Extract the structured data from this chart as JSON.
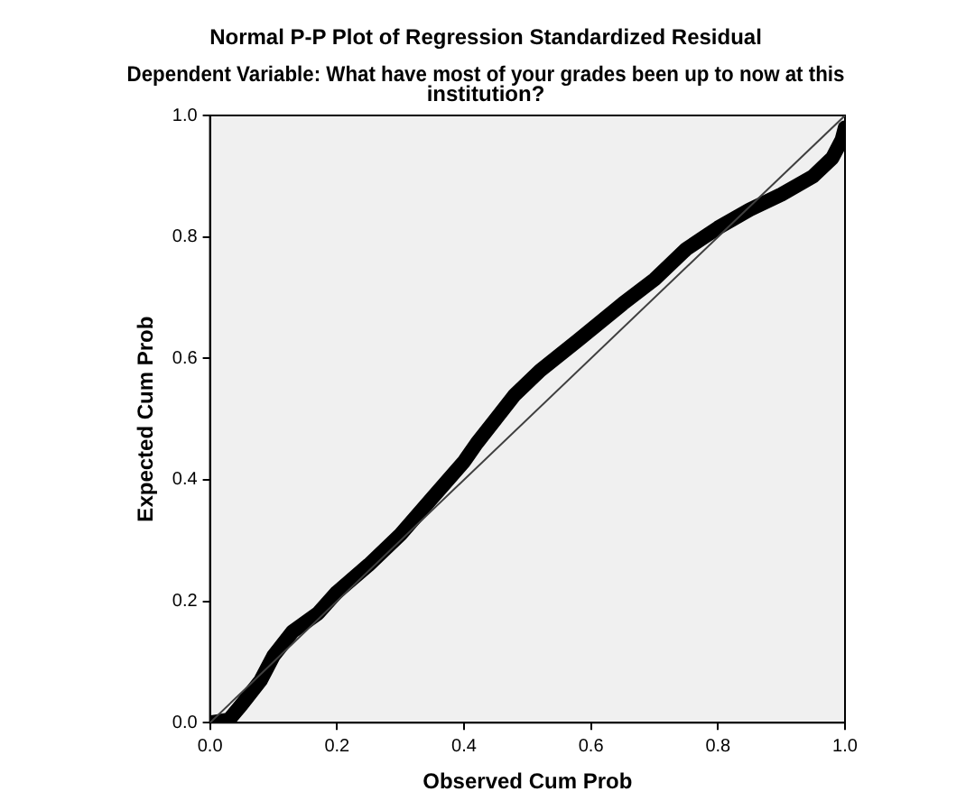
{
  "chart_data": {
    "type": "line",
    "title": "Normal P-P Plot of Regression Standardized Residual",
    "subtitle": "Dependent Variable: What have most of your grades been up to now at this institution?",
    "xlabel": "Observed Cum Prob",
    "ylabel": "Expected Cum Prob",
    "x": [
      0.0,
      0.03,
      0.05,
      0.08,
      0.1,
      0.13,
      0.17,
      0.2,
      0.25,
      0.3,
      0.35,
      0.4,
      0.42,
      0.45,
      0.48,
      0.52,
      0.58,
      0.65,
      0.7,
      0.75,
      0.8,
      0.85,
      0.9,
      0.95,
      0.98,
      0.995,
      1.0
    ],
    "series": [
      {
        "color": "#000000",
        "values": [
          0.0,
          0.005,
          0.03,
          0.07,
          0.11,
          0.15,
          0.18,
          0.215,
          0.26,
          0.31,
          0.37,
          0.43,
          0.46,
          0.5,
          0.54,
          0.58,
          0.63,
          0.69,
          0.73,
          0.78,
          0.815,
          0.845,
          0.87,
          0.9,
          0.93,
          0.96,
          0.98
        ]
      },
      {
        "type": "line",
        "color": "#404040",
        "x": [
          0,
          1
        ],
        "values": [
          0,
          1
        ]
      }
    ],
    "xlim": [
      0,
      1
    ],
    "ylim": [
      0,
      1
    ],
    "xticks": [
      {
        "value": 0,
        "label": "0.0"
      },
      {
        "value": 0.2,
        "label": "0.2"
      },
      {
        "value": 0.4,
        "label": "0.4"
      },
      {
        "value": 0.6,
        "label": "0.6"
      },
      {
        "value": 0.8,
        "label": "0.8"
      },
      {
        "value": 1,
        "label": "1.0"
      }
    ],
    "yticks": [
      {
        "value": 0,
        "label": "0.0"
      },
      {
        "value": 0.2,
        "label": "0.2"
      },
      {
        "value": 0.4,
        "label": "0.4"
      },
      {
        "value": 0.6,
        "label": "0.6"
      },
      {
        "value": 0.8,
        "label": "0.8"
      },
      {
        "value": 1,
        "label": "1.0"
      }
    ],
    "grid": false,
    "legend": false,
    "marker": "none"
  }
}
